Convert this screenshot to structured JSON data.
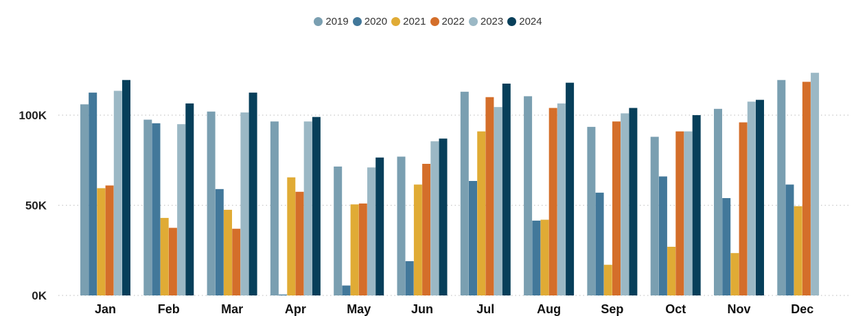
{
  "chart_data": {
    "type": "bar",
    "title": "",
    "xlabel": "",
    "ylabel": "",
    "categories": [
      "Jan",
      "Feb",
      "Mar",
      "Apr",
      "May",
      "Jun",
      "Jul",
      "Aug",
      "Sep",
      "Oct",
      "Nov",
      "Dec"
    ],
    "series": [
      {
        "name": "2019",
        "color": "#7a9fb1",
        "values": [
          106000,
          97500,
          102000,
          96500,
          71500,
          77000,
          113000,
          110500,
          93500,
          88000,
          103500,
          119500
        ]
      },
      {
        "name": "2020",
        "color": "#42789a",
        "values": [
          112500,
          95500,
          59000,
          500,
          5500,
          19000,
          63500,
          41500,
          57000,
          66000,
          54000,
          61500
        ]
      },
      {
        "name": "2021",
        "color": "#e0ab35",
        "values": [
          59500,
          43000,
          47500,
          65500,
          50500,
          61500,
          91000,
          42000,
          17000,
          27000,
          23500,
          49500
        ]
      },
      {
        "name": "2022",
        "color": "#d46e2a",
        "values": [
          61000,
          37500,
          37000,
          57500,
          51000,
          73000,
          110000,
          104000,
          96500,
          91000,
          96000,
          118500
        ]
      },
      {
        "name": "2023",
        "color": "#9bb8c5",
        "values": [
          113500,
          95000,
          101500,
          96500,
          71000,
          85500,
          104500,
          106500,
          101000,
          91000,
          107500,
          123500
        ]
      },
      {
        "name": "2024",
        "color": "#073f5a",
        "values": [
          119500,
          106500,
          112500,
          99000,
          76500,
          87000,
          117500,
          118000,
          104000,
          100000,
          108500,
          null
        ]
      }
    ],
    "yticks": [
      0,
      50000,
      100000
    ],
    "ytick_labels": [
      "0K",
      "50K",
      "100K"
    ],
    "ylim": [
      0,
      125000
    ],
    "grid": true,
    "legend_position": "top-center"
  }
}
